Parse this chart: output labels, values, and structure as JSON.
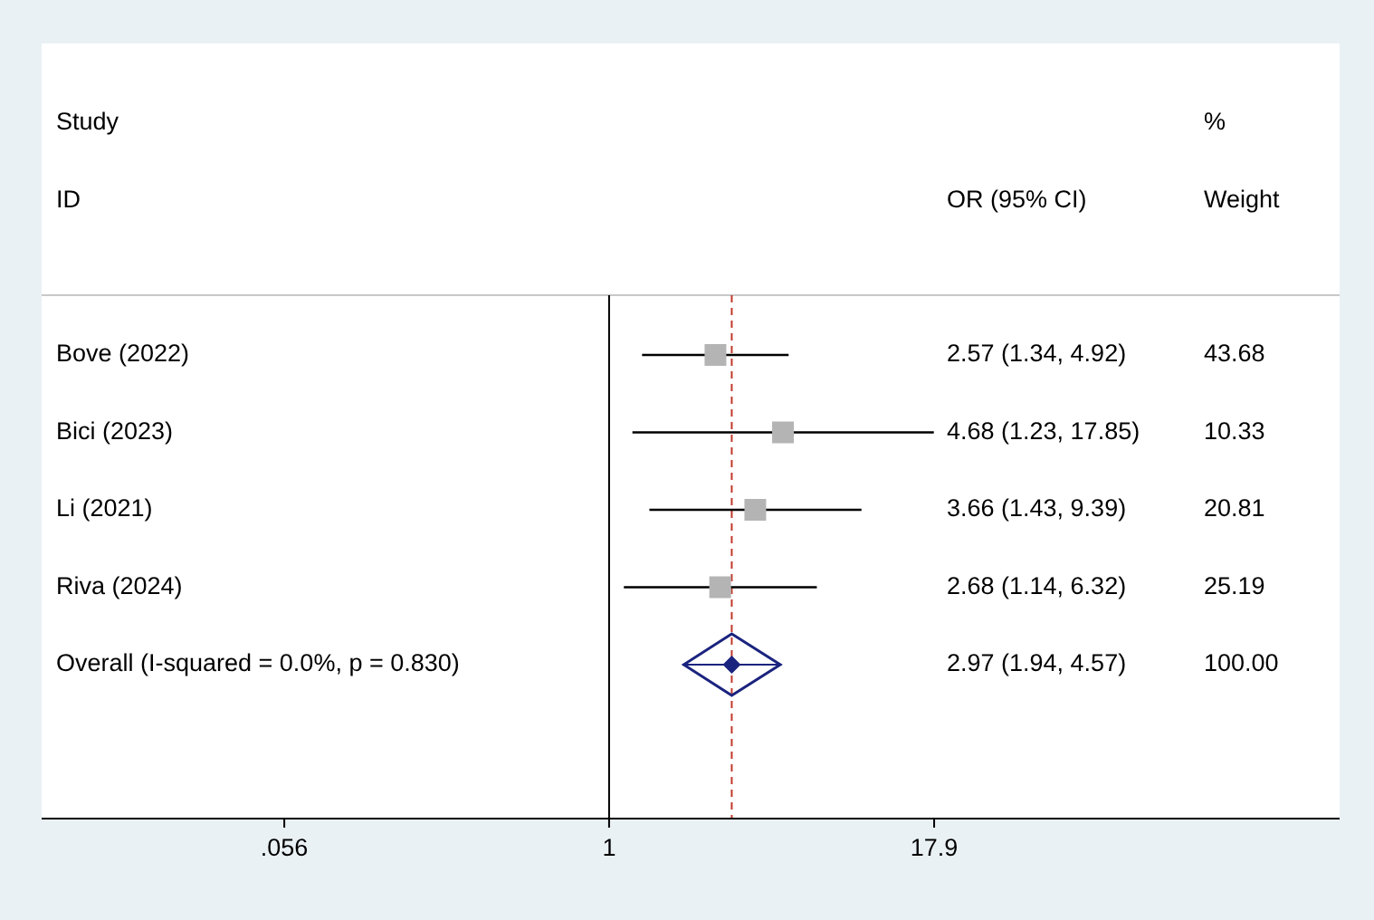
{
  "chart_data": {
    "type": "scatter",
    "orientation": "horizontal",
    "log": "x",
    "categories": [
      "Bove (2022)",
      "Bici (2023)",
      "Li (2021)",
      "Riva (2024)",
      "Overall  (I-squared = 0.0%, p = 0.830)"
    ],
    "series": [
      {
        "type": "scatter",
        "marker": "square",
        "color": "#b4b4b4",
        "values": [
          2.57,
          4.68,
          3.66,
          2.68,
          null
        ],
        "errors": [
          [
            1.34,
            4.92
          ],
          [
            1.23,
            17.85
          ],
          [
            1.43,
            9.39
          ],
          [
            1.14,
            6.32
          ],
          null
        ]
      },
      {
        "type": "scatter",
        "marker": "diamond",
        "color": "#1a237e",
        "values": [
          null,
          null,
          null,
          null,
          2.97
        ],
        "errors": [
          null,
          null,
          null,
          null,
          [
            1.94,
            4.57
          ]
        ]
      }
    ],
    "value_labels": [
      "2.57 (1.34, 4.92)",
      "4.68 (1.23, 17.85)",
      "3.66 (1.43, 9.39)",
      "2.68 (1.14, 6.32)",
      "2.97 (1.94, 4.57)"
    ],
    "xlim": [
      0.0065,
      654
    ],
    "xticks": [
      {
        "value": 0.056,
        "label": ".056"
      },
      1,
      17.9
    ],
    "ref_lines": [
      {
        "axis": "x",
        "value": 1,
        "color": "#000000",
        "line_style": "solid"
      },
      {
        "axis": "x",
        "value": 2.97,
        "color": "#c0392b",
        "line_style": "dashed"
      }
    ],
    "annotations": [
      "Study",
      "ID",
      "OR (95% CI)",
      "%",
      "Weight",
      "43.68",
      "10.33",
      "20.81",
      "25.19",
      "100.00"
    ]
  }
}
